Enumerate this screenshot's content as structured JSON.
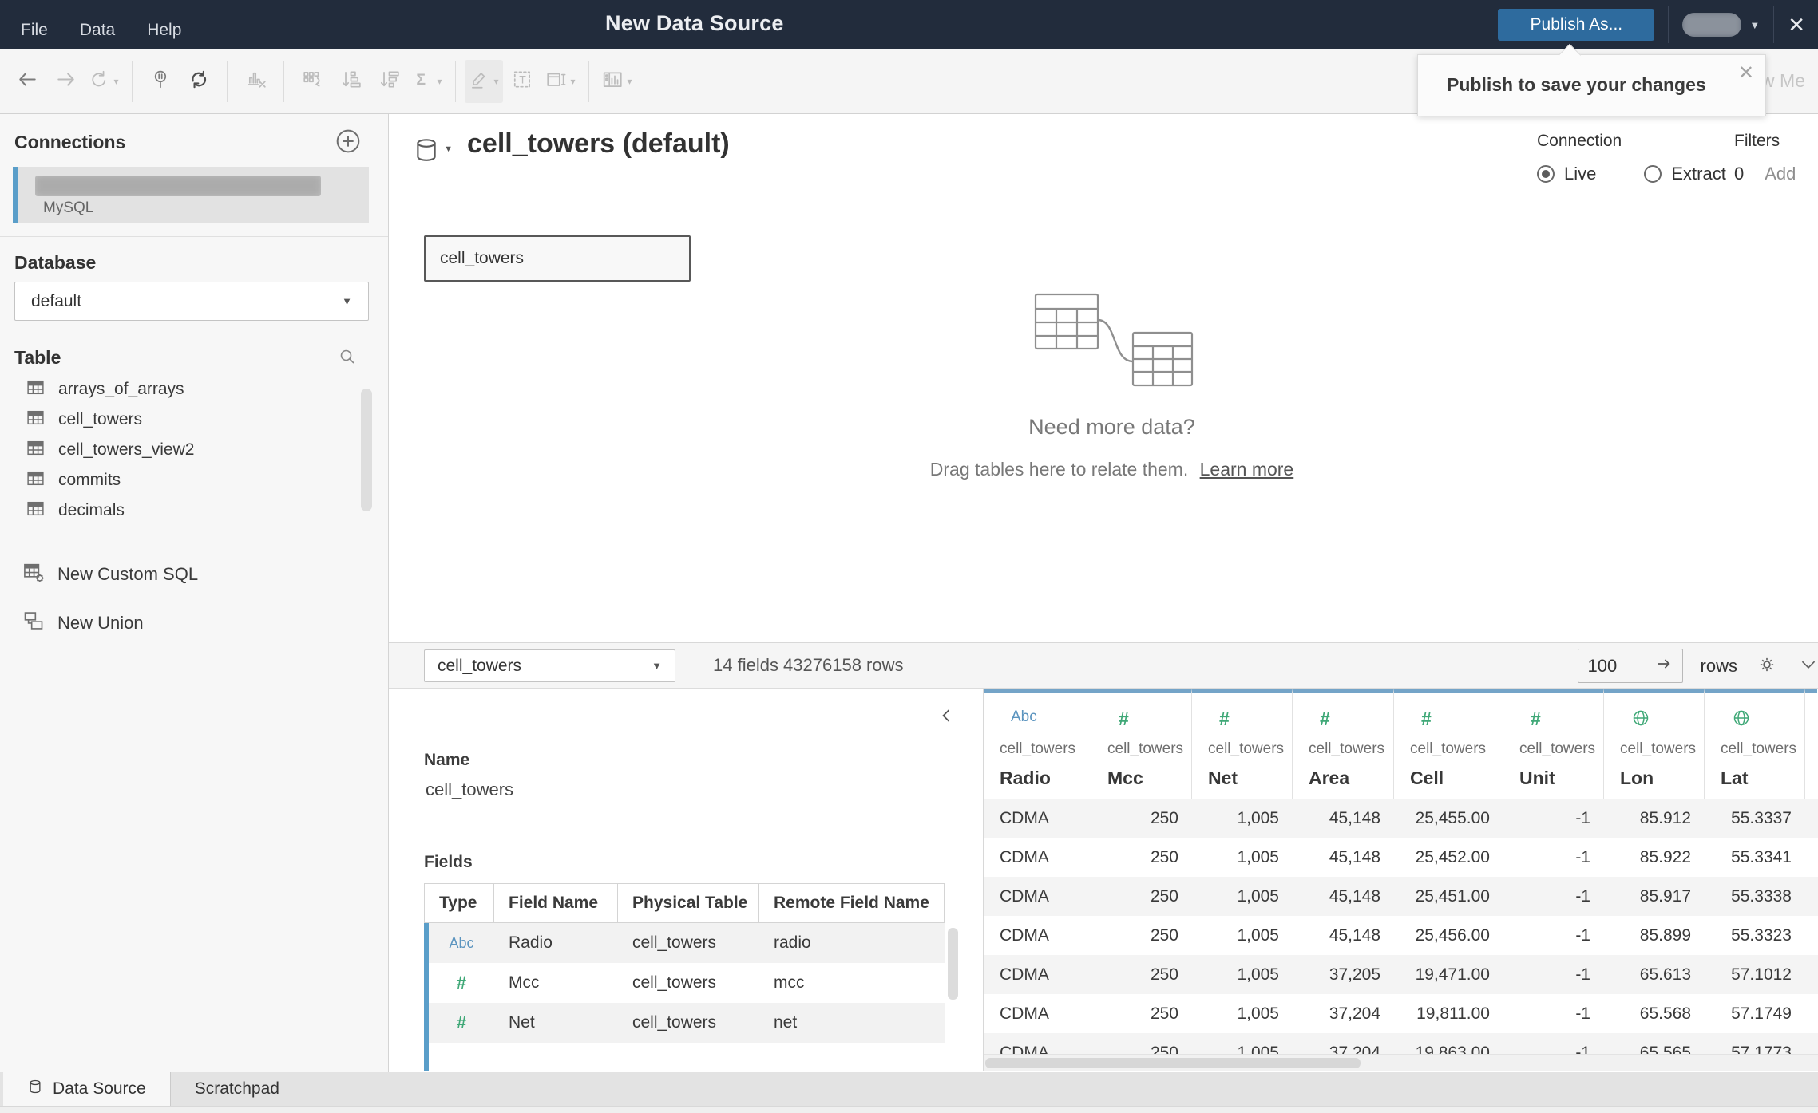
{
  "colors": {
    "topbar": "#222c3c",
    "accent": "#2e6b9e",
    "grid-col-border": "#74a4c8",
    "accent-bar": "#5a9ec9",
    "type-blue": "#5b94bf",
    "type-green": "#3fa877"
  },
  "titlebar": {
    "menus": [
      "File",
      "Data",
      "Help"
    ],
    "title": "New Data Source",
    "publish_label": "Publish As...",
    "close_glyph": "✕"
  },
  "tooltip": {
    "text": "Publish to save your changes",
    "close_glyph": "✕"
  },
  "toolbar": {
    "show_me": "Show Me",
    "groups": [
      [
        {
          "icon": "undo",
          "state": "normal"
        },
        {
          "icon": "redo",
          "state": "disabled"
        },
        {
          "icon": "replay",
          "state": "disabled",
          "caret": true
        }
      ],
      [
        {
          "icon": "pause-updates",
          "state": "normal"
        },
        {
          "icon": "run-update",
          "state": "dark"
        }
      ],
      [
        {
          "icon": "clear-sheet",
          "state": "disabled"
        }
      ],
      [
        {
          "icon": "swap-axes",
          "state": "disabled"
        },
        {
          "icon": "sort-ascending",
          "state": "disabled"
        },
        {
          "icon": "sort-descending",
          "state": "disabled"
        },
        {
          "icon": "totals",
          "state": "disabled",
          "caret": true
        }
      ],
      [
        {
          "icon": "highlight",
          "state": "disabled",
          "caret": true,
          "hl": true
        },
        {
          "icon": "labels",
          "state": "disabled"
        },
        {
          "icon": "fit",
          "state": "disabled",
          "caret": true
        }
      ],
      [
        {
          "icon": "show-cards",
          "state": "disabled",
          "caret": true
        }
      ]
    ]
  },
  "sidebar": {
    "connections_header": "Connections",
    "connection": {
      "type": "MySQL"
    },
    "database_header": "Database",
    "database_value": "default",
    "table_header": "Table",
    "tables": [
      "arrays_of_arrays",
      "cell_towers",
      "cell_towers_view2",
      "commits",
      "decimals"
    ],
    "actions": [
      {
        "icon": "custom-sql",
        "label": "New Custom SQL"
      },
      {
        "icon": "union",
        "label": "New Union"
      }
    ]
  },
  "canvas": {
    "title": "cell_towers (default)",
    "connection_label": "Connection",
    "live_label": "Live",
    "extract_label": "Extract",
    "filters_label": "Filters",
    "filters_count": "0",
    "add_label": "Add",
    "table_box_label": "cell_towers",
    "empty_title": "Need more data?",
    "empty_hint": "Drag tables here to relate them.",
    "learn_more": "Learn more"
  },
  "preview_bar": {
    "table_select_value": "cell_towers",
    "meta_text": "14 fields 43276158 rows",
    "rows_value": "100",
    "rows_label": "rows"
  },
  "details": {
    "name_label": "Name",
    "name_value": "cell_towers",
    "fields_label": "Fields",
    "columns": [
      "Type",
      "Field Name",
      "Physical Table",
      "Remote Field Name"
    ],
    "rows": [
      {
        "type": "Abc",
        "field": "Radio",
        "table": "cell_towers",
        "remote": "radio"
      },
      {
        "type": "#",
        "field": "Mcc",
        "table": "cell_towers",
        "remote": "mcc"
      },
      {
        "type": "#",
        "field": "Net",
        "table": "cell_towers",
        "remote": "net"
      }
    ]
  },
  "grid": {
    "columns": [
      {
        "icon": "Abc",
        "table": "cell_towers",
        "name": "Radio"
      },
      {
        "icon": "#",
        "table": "cell_towers",
        "name": "Mcc"
      },
      {
        "icon": "#",
        "table": "cell_towers",
        "name": "Net"
      },
      {
        "icon": "#",
        "table": "cell_towers",
        "name": "Area"
      },
      {
        "icon": "#",
        "table": "cell_towers",
        "name": "Cell"
      },
      {
        "icon": "#",
        "table": "cell_towers",
        "name": "Unit"
      },
      {
        "icon": "globe",
        "table": "cell_towers",
        "name": "Lon"
      },
      {
        "icon": "globe",
        "table": "cell_towers",
        "name": "Lat"
      }
    ],
    "rows": [
      [
        "CDMA",
        "250",
        "1,005",
        "45,148",
        "25,455.00",
        "-1",
        "85.912",
        "55.3337"
      ],
      [
        "CDMA",
        "250",
        "1,005",
        "45,148",
        "25,452.00",
        "-1",
        "85.922",
        "55.3341"
      ],
      [
        "CDMA",
        "250",
        "1,005",
        "45,148",
        "25,451.00",
        "-1",
        "85.917",
        "55.3338"
      ],
      [
        "CDMA",
        "250",
        "1,005",
        "45,148",
        "25,456.00",
        "-1",
        "85.899",
        "55.3323"
      ],
      [
        "CDMA",
        "250",
        "1,005",
        "37,205",
        "19,471.00",
        "-1",
        "65.613",
        "57.1012"
      ],
      [
        "CDMA",
        "250",
        "1,005",
        "37,204",
        "19,811.00",
        "-1",
        "65.568",
        "57.1749"
      ],
      [
        "CDMA",
        "250",
        "1,005",
        "37,204",
        "19,863.00",
        "-1",
        "65.565",
        "57.1773"
      ]
    ]
  },
  "statusbar": {
    "tabs": [
      {
        "label": "Data Source",
        "active": true
      },
      {
        "label": "Scratchpad",
        "active": false
      }
    ]
  }
}
